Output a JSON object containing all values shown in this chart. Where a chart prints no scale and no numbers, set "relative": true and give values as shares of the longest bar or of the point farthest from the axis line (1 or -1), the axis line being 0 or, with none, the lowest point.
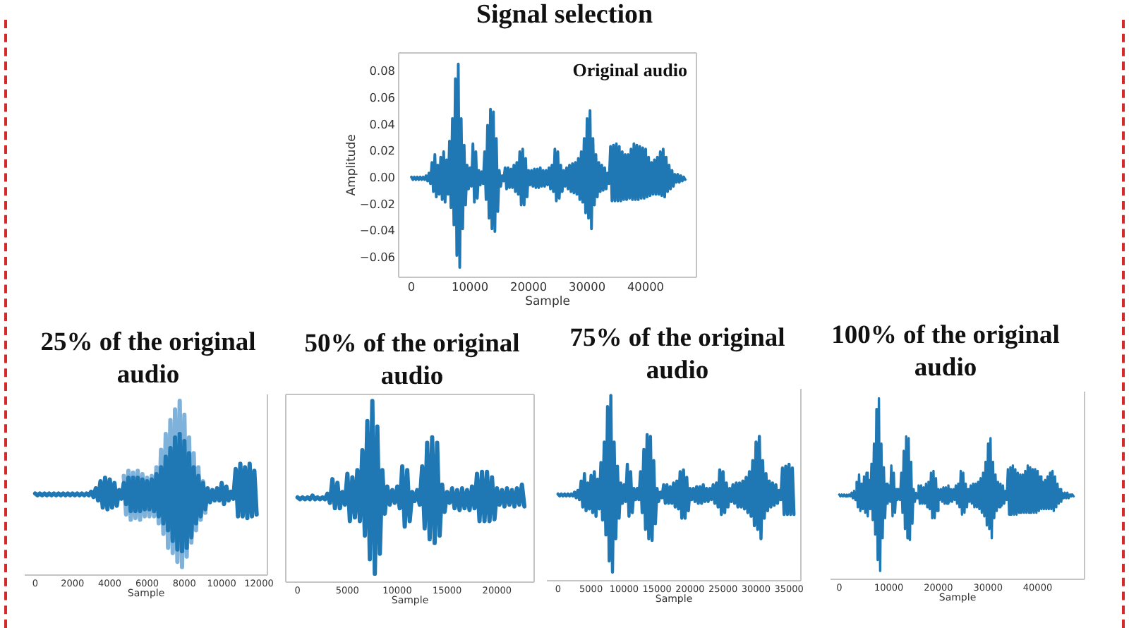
{
  "chart_data": [
    {
      "type": "line",
      "title": "Signal selection",
      "annotations": [
        "Original audio"
      ],
      "xlabel": "Sample",
      "ylabel": "Amplitude",
      "x": [
        0,
        250,
        500,
        750,
        1000,
        1250,
        1500,
        1750,
        2000,
        2250,
        2500,
        2750,
        3000,
        3250,
        3500,
        3750,
        4000,
        4250,
        4500,
        4750,
        5000,
        5250,
        5500,
        5750,
        6000,
        6250,
        6500,
        6750,
        7000,
        7250,
        7500,
        7750,
        8000,
        8250,
        8500,
        8750,
        9000,
        9250,
        9500,
        9750,
        10000,
        10250,
        10500,
        10750,
        11000,
        11250,
        11500,
        11750,
        12000,
        12250,
        12500,
        12750,
        13000,
        13250,
        13500,
        13750,
        14000,
        14250,
        14500,
        14750,
        15000,
        15250,
        15500,
        15750,
        16000,
        16250,
        16500,
        16750,
        17000,
        17250,
        17500,
        17750,
        18000,
        18250,
        18500,
        18750,
        19000,
        19250,
        19500,
        19750,
        20000,
        20250,
        20500,
        20750,
        21000,
        21250,
        21500,
        21750,
        22000,
        22250,
        22500,
        22750,
        23000,
        23250,
        23500,
        23750,
        24000,
        24250,
        24500,
        24750,
        25000,
        25250,
        25500,
        25750,
        26000,
        26250,
        26500,
        26750,
        27000,
        27250,
        27500,
        27750,
        28000,
        28250,
        28500,
        28750,
        29000,
        29250,
        29500,
        29750,
        30000,
        30250,
        30500,
        30750,
        31000,
        31250,
        31500,
        31750,
        32000,
        32250,
        32500,
        32750,
        33000,
        33250,
        33500,
        33750,
        34000,
        34250,
        34500,
        34750,
        35000,
        35250,
        35500,
        35750,
        36000,
        36250,
        36500,
        36750,
        37000,
        37250,
        37500,
        37750,
        38000,
        38250,
        38500,
        38750,
        39000,
        39250,
        39500,
        39750,
        40000,
        40250,
        40500,
        40750,
        41000,
        41250,
        41500,
        41750,
        42000,
        42250,
        42500,
        42750,
        43000,
        43250,
        43500,
        43750,
        44000,
        44250,
        44500,
        44750,
        45000,
        45250,
        45500,
        45750,
        46000,
        46250,
        46500,
        46750
      ],
      "series": [
        {
          "color": "#1f77b4",
          "values": [
            0.001,
            -0.001,
            0.001,
            -0.001,
            0.001,
            -0.001,
            0.001,
            -0.001,
            0.001,
            -0.001,
            0.002,
            -0.002,
            0.004,
            -0.004,
            0.012,
            -0.01,
            0.018,
            -0.014,
            0.01,
            -0.012,
            0.016,
            -0.016,
            0.02,
            -0.018,
            0.014,
            -0.012,
            0.028,
            -0.022,
            0.045,
            -0.035,
            0.075,
            -0.058,
            0.086,
            -0.067,
            0.045,
            -0.038,
            0.025,
            -0.02,
            0.01,
            -0.008,
            0.008,
            -0.006,
            0.026,
            -0.018,
            0.02,
            -0.015,
            0.006,
            -0.005,
            0.005,
            -0.004,
            0.02,
            -0.016,
            0.04,
            -0.03,
            0.052,
            -0.038,
            0.05,
            -0.04,
            0.03,
            -0.025,
            0.006,
            -0.006,
            0.002,
            -0.002,
            0.008,
            -0.008,
            0.008,
            -0.007,
            0.007,
            -0.007,
            0.01,
            -0.01,
            0.012,
            -0.012,
            0.02,
            -0.02,
            0.022,
            -0.02,
            0.015,
            -0.014,
            0.006,
            -0.005,
            0.006,
            -0.006,
            0.007,
            -0.007,
            0.007,
            -0.007,
            0.008,
            -0.006,
            0.006,
            -0.006,
            0.006,
            -0.005,
            0.008,
            -0.008,
            0.01,
            -0.01,
            0.022,
            -0.017,
            0.02,
            -0.015,
            0.01,
            -0.01,
            0.006,
            -0.006,
            0.008,
            -0.008,
            0.01,
            -0.01,
            0.011,
            -0.011,
            0.012,
            -0.012,
            0.015,
            -0.016,
            0.02,
            -0.018,
            0.03,
            -0.026,
            0.045,
            -0.03,
            0.051,
            -0.038,
            0.03,
            -0.02,
            0.018,
            -0.014,
            0.012,
            -0.01,
            0.01,
            -0.009,
            0.008,
            -0.008,
            0.004,
            -0.004,
            0.024,
            -0.017,
            0.025,
            -0.017,
            0.026,
            -0.017,
            0.024,
            -0.017,
            0.02,
            -0.016,
            0.018,
            -0.016,
            0.018,
            -0.015,
            0.022,
            -0.016,
            0.026,
            -0.016,
            0.025,
            -0.016,
            0.024,
            -0.015,
            0.023,
            -0.015,
            0.022,
            -0.014,
            0.016,
            -0.013,
            0.012,
            -0.012,
            0.014,
            -0.012,
            0.016,
            -0.012,
            0.02,
            -0.013,
            0.022,
            -0.014,
            0.016,
            -0.01,
            0.01,
            -0.008,
            0.006,
            -0.006,
            0.003,
            -0.003,
            0.003,
            -0.003,
            0.002,
            -0.002,
            0.001,
            -0.001
          ]
        }
      ],
      "xlim": [
        -2300,
        48800
      ],
      "xticks": [
        0,
        10000,
        20000,
        30000,
        40000
      ],
      "ylim": [
        -0.075,
        0.095
      ],
      "yticks": [
        {
          "value": -0.06,
          "label": "−0.06"
        },
        {
          "value": -0.04,
          "label": "−0.04"
        },
        {
          "value": -0.02,
          "label": "−0.02"
        },
        {
          "value": 0,
          "label": "0.00"
        },
        0.02,
        0.04,
        0.06,
        0.08
      ]
    },
    {
      "type": "line",
      "title": "25% of the original audio",
      "xlabel": "Sample",
      "relative": true,
      "series": [
        {
          "color": "#7fb2da",
          "x": [
            4750,
            4875,
            5000,
            5125,
            5250,
            5375,
            5500,
            5625,
            5750,
            5875,
            6000,
            6125,
            6250,
            6375,
            6500,
            6625,
            6750,
            6875,
            7000,
            7125,
            7250,
            7375,
            7500,
            7625,
            7750,
            7875,
            8000,
            8125,
            8250,
            8375,
            8500,
            8625,
            8750,
            8875,
            9000,
            9125
          ],
          "values": [
            0.57,
            0.35,
            0.6,
            0.32,
            0.59,
            0.33,
            0.6,
            0.32,
            0.58,
            0.34,
            0.56,
            0.34,
            0.57,
            0.34,
            0.62,
            0.3,
            0.72,
            0.24,
            0.81,
            0.16,
            0.89,
            0.13,
            0.95,
            0.08,
            1,
            0.05,
            0.92,
            0.11,
            0.79,
            0.19,
            0.7,
            0.26,
            0.62,
            0.32,
            0.54,
            0.36
          ]
        },
        {
          "color": "#1f77b4",
          "x": [
            0,
            125,
            250,
            375,
            500,
            625,
            750,
            875,
            1000,
            1125,
            1250,
            1375,
            1500,
            1625,
            1750,
            1875,
            2000,
            2125,
            2250,
            2375,
            2500,
            2625,
            2750,
            2875,
            3000,
            3125,
            3250,
            3375,
            3500,
            3625,
            3750,
            3875,
            4000,
            4125,
            4250,
            4375,
            4500,
            4625,
            4750,
            4875,
            5000,
            5125,
            5250,
            5375,
            5500,
            5625,
            5750,
            5875,
            6000,
            6125,
            6250,
            6375,
            6500,
            6625,
            6750,
            6875,
            7000,
            7125,
            7250,
            7375,
            7500,
            7625,
            7750,
            7875,
            8000,
            8125,
            8250,
            8375,
            8500,
            8625,
            8750,
            8875,
            9000,
            9125,
            9250,
            9375,
            9500,
            9625,
            9750,
            9875,
            10000,
            10125,
            10250,
            10375,
            10500,
            10625,
            10750,
            10875,
            11000,
            11125,
            11250,
            11375,
            11500,
            11625,
            11750,
            11875
          ],
          "values": [
            0.47,
            0.46,
            0.47,
            0.46,
            0.47,
            0.46,
            0.47,
            0.46,
            0.47,
            0.46,
            0.47,
            0.46,
            0.47,
            0.46,
            0.47,
            0.46,
            0.47,
            0.46,
            0.47,
            0.46,
            0.47,
            0.46,
            0.47,
            0.46,
            0.48,
            0.45,
            0.5,
            0.43,
            0.54,
            0.39,
            0.56,
            0.38,
            0.55,
            0.39,
            0.53,
            0.4,
            0.49,
            0.44,
            0.53,
            0.41,
            0.56,
            0.37,
            0.56,
            0.37,
            0.56,
            0.37,
            0.55,
            0.38,
            0.54,
            0.38,
            0.55,
            0.37,
            0.58,
            0.34,
            0.62,
            0.3,
            0.68,
            0.26,
            0.73,
            0.2,
            0.79,
            0.15,
            0.81,
            0.14,
            0.77,
            0.16,
            0.7,
            0.22,
            0.62,
            0.3,
            0.57,
            0.34,
            0.53,
            0.38,
            0.5,
            0.42,
            0.49,
            0.43,
            0.5,
            0.43,
            0.53,
            0.41,
            0.51,
            0.43,
            0.48,
            0.44,
            0.61,
            0.34,
            0.64,
            0.34,
            0.62,
            0.33,
            0.64,
            0.34,
            0.6,
            0.35
          ]
        }
      ],
      "xlim": [
        -600,
        12500
      ],
      "xticks": [
        0,
        2000,
        4000,
        6000,
        8000,
        10000,
        12000
      ]
    },
    {
      "type": "line",
      "title": "50% of the original audio",
      "xlabel": "Sample",
      "relative": true,
      "x": [
        0,
        250,
        500,
        750,
        1000,
        1250,
        1500,
        1750,
        2000,
        2250,
        2500,
        2750,
        3000,
        3250,
        3500,
        3750,
        4000,
        4250,
        4500,
        4750,
        5000,
        5250,
        5500,
        5750,
        6000,
        6250,
        6500,
        6750,
        7000,
        7250,
        7500,
        7750,
        8000,
        8250,
        8500,
        8750,
        9000,
        9250,
        9500,
        9750,
        10000,
        10250,
        10500,
        10750,
        11000,
        11250,
        11500,
        11750,
        12000,
        12250,
        12500,
        12750,
        13000,
        13250,
        13500,
        13750,
        14000,
        14250,
        14500,
        14750,
        15000,
        15250,
        15500,
        15750,
        16000,
        16250,
        16500,
        16750,
        17000,
        17250,
        17500,
        17750,
        18000,
        18250,
        18500,
        18750,
        19000,
        19250,
        19500,
        19750,
        20000,
        20250,
        20500,
        20750,
        21000,
        21250,
        21500,
        21750,
        22000,
        22250,
        22500,
        22750
      ],
      "series": [
        {
          "color": "#1f77b4",
          "values": [
            0.47,
            0.46,
            0.47,
            0.46,
            0.47,
            0.46,
            0.48,
            0.46,
            0.47,
            0.46,
            0.47,
            0.46,
            0.49,
            0.44,
            0.57,
            0.41,
            0.55,
            0.41,
            0.5,
            0.43,
            0.6,
            0.34,
            0.58,
            0.36,
            0.62,
            0.34,
            0.73,
            0.26,
            0.89,
            0.13,
            1,
            0.05,
            0.86,
            0.16,
            0.62,
            0.38,
            0.53,
            0.43,
            0.51,
            0.44,
            0.53,
            0.41,
            0.64,
            0.31,
            0.62,
            0.34,
            0.5,
            0.45,
            0.51,
            0.43,
            0.64,
            0.3,
            0.77,
            0.24,
            0.8,
            0.22,
            0.77,
            0.26,
            0.54,
            0.39,
            0.5,
            0.44,
            0.52,
            0.41,
            0.51,
            0.4,
            0.52,
            0.41,
            0.51,
            0.4,
            0.53,
            0.41,
            0.6,
            0.34,
            0.61,
            0.34,
            0.61,
            0.34,
            0.58,
            0.35,
            0.52,
            0.43,
            0.51,
            0.42,
            0.52,
            0.43,
            0.51,
            0.42,
            0.52,
            0.43,
            0.54,
            0.42
          ]
        }
      ],
      "xlim": [
        -1250,
        23800
      ],
      "xticks": [
        0,
        5000,
        10000,
        15000,
        20000
      ]
    },
    {
      "type": "line",
      "title": "75% of the original audio",
      "xlabel": "Sample",
      "relative": true,
      "x": [
        0,
        250,
        500,
        750,
        1000,
        1250,
        1500,
        1750,
        2000,
        2250,
        2500,
        2750,
        3000,
        3250,
        3500,
        3750,
        4000,
        4250,
        4500,
        4750,
        5000,
        5250,
        5500,
        5750,
        6000,
        6250,
        6500,
        6750,
        7000,
        7250,
        7500,
        7750,
        8000,
        8250,
        8500,
        8750,
        9000,
        9250,
        9500,
        9750,
        10000,
        10250,
        10500,
        10750,
        11000,
        11250,
        11500,
        11750,
        12000,
        12250,
        12500,
        12750,
        13000,
        13250,
        13500,
        13750,
        14000,
        14250,
        14500,
        14750,
        15000,
        15250,
        15500,
        15750,
        16000,
        16250,
        16500,
        16750,
        17000,
        17250,
        17500,
        17750,
        18000,
        18250,
        18500,
        18750,
        19000,
        19250,
        19500,
        19750,
        20000,
        20250,
        20500,
        20750,
        21000,
        21250,
        21500,
        21750,
        22000,
        22250,
        22500,
        22750,
        23000,
        23250,
        23500,
        23750,
        24000,
        24250,
        24500,
        24750,
        25000,
        25250,
        25500,
        25750,
        26000,
        26250,
        26500,
        26750,
        27000,
        27250,
        27500,
        27750,
        28000,
        28250,
        28500,
        28750,
        29000,
        29250,
        29500,
        29750,
        30000,
        30250,
        30500,
        30750,
        31000,
        31250,
        31500,
        31750,
        32000,
        32250,
        32500,
        32750,
        33000,
        33250,
        33500,
        33750,
        34000,
        34250,
        34500,
        34750,
        35000,
        35250,
        35500,
        35750
      ],
      "series": [
        {
          "color": "#1f77b4",
          "values": [
            0.47,
            0.46,
            0.47,
            0.46,
            0.47,
            0.46,
            0.47,
            0.46,
            0.47,
            0.46,
            0.48,
            0.45,
            0.49,
            0.44,
            0.54,
            0.4,
            0.58,
            0.38,
            0.53,
            0.39,
            0.57,
            0.37,
            0.59,
            0.35,
            0.55,
            0.39,
            0.64,
            0.33,
            0.75,
            0.25,
            0.94,
            0.11,
            1,
            0.05,
            0.75,
            0.23,
            0.62,
            0.34,
            0.53,
            0.42,
            0.52,
            0.43,
            0.63,
            0.35,
            0.59,
            0.37,
            0.5,
            0.44,
            0.5,
            0.44,
            0.59,
            0.37,
            0.71,
            0.28,
            0.79,
            0.23,
            0.78,
            0.22,
            0.65,
            0.31,
            0.5,
            0.43,
            0.48,
            0.45,
            0.52,
            0.42,
            0.52,
            0.42,
            0.51,
            0.42,
            0.53,
            0.4,
            0.54,
            0.39,
            0.59,
            0.34,
            0.6,
            0.34,
            0.56,
            0.38,
            0.5,
            0.44,
            0.5,
            0.43,
            0.51,
            0.42,
            0.51,
            0.42,
            0.52,
            0.43,
            0.5,
            0.43,
            0.5,
            0.44,
            0.52,
            0.42,
            0.53,
            0.4,
            0.6,
            0.36,
            0.59,
            0.37,
            0.53,
            0.4,
            0.5,
            0.43,
            0.52,
            0.42,
            0.53,
            0.4,
            0.53,
            0.4,
            0.54,
            0.39,
            0.56,
            0.37,
            0.59,
            0.35,
            0.65,
            0.3,
            0.75,
            0.28,
            0.78,
            0.23,
            0.65,
            0.34,
            0.58,
            0.38,
            0.54,
            0.4,
            0.53,
            0.41,
            0.52,
            0.42,
            0.49,
            0.44,
            0.61,
            0.36,
            0.62,
            0.36,
            0.63,
            0.36,
            0.61,
            0.36
          ]
        }
      ],
      "xlim": [
        -1800,
        36900
      ],
      "xticks": [
        0,
        5000,
        10000,
        15000,
        20000,
        25000,
        30000,
        35000
      ]
    },
    {
      "type": "line",
      "title": "100% of the original audio",
      "xlabel": "Sample",
      "relative": true,
      "x": [
        0,
        250,
        500,
        750,
        1000,
        1250,
        1500,
        1750,
        2000,
        2250,
        2500,
        2750,
        3000,
        3250,
        3500,
        3750,
        4000,
        4250,
        4500,
        4750,
        5000,
        5250,
        5500,
        5750,
        6000,
        6250,
        6500,
        6750,
        7000,
        7250,
        7500,
        7750,
        8000,
        8250,
        8500,
        8750,
        9000,
        9250,
        9500,
        9750,
        10000,
        10250,
        10500,
        10750,
        11000,
        11250,
        11500,
        11750,
        12000,
        12250,
        12500,
        12750,
        13000,
        13250,
        13500,
        13750,
        14000,
        14250,
        14500,
        14750,
        15000,
        15250,
        15500,
        15750,
        16000,
        16250,
        16500,
        16750,
        17000,
        17250,
        17500,
        17750,
        18000,
        18250,
        18500,
        18750,
        19000,
        19250,
        19500,
        19750,
        20000,
        20250,
        20500,
        20750,
        21000,
        21250,
        21500,
        21750,
        22000,
        22250,
        22500,
        22750,
        23000,
        23250,
        23500,
        23750,
        24000,
        24250,
        24500,
        24750,
        25000,
        25250,
        25500,
        25750,
        26000,
        26250,
        26500,
        26750,
        27000,
        27250,
        27500,
        27750,
        28000,
        28250,
        28500,
        28750,
        29000,
        29250,
        29500,
        29750,
        30000,
        30250,
        30500,
        30750,
        31000,
        31250,
        31500,
        31750,
        32000,
        32250,
        32500,
        32750,
        33000,
        33250,
        33500,
        33750,
        34000,
        34250,
        34500,
        34750,
        35000,
        35250,
        35500,
        35750,
        36000,
        36250,
        36500,
        36750,
        37000,
        37250,
        37500,
        37750,
        38000,
        38250,
        38500,
        38750,
        39000,
        39250,
        39500,
        39750,
        40000,
        40250,
        40500,
        40750,
        41000,
        41250,
        41500,
        41750,
        42000,
        42250,
        42500,
        42750,
        43000,
        43250,
        43500,
        43750,
        44000,
        44250,
        44500,
        44750,
        45000,
        45250,
        45500,
        45750,
        46000,
        46250,
        46500,
        46750,
        47000,
        47250
      ],
      "series": [
        {
          "color": "#1f77b4",
          "values": [
            0.47,
            0.46,
            0.47,
            0.46,
            0.47,
            0.46,
            0.47,
            0.46,
            0.47,
            0.46,
            0.48,
            0.45,
            0.49,
            0.44,
            0.54,
            0.4,
            0.58,
            0.38,
            0.53,
            0.39,
            0.57,
            0.37,
            0.59,
            0.35,
            0.55,
            0.39,
            0.64,
            0.33,
            0.75,
            0.25,
            0.94,
            0.11,
            1,
            0.05,
            0.75,
            0.23,
            0.62,
            0.34,
            0.53,
            0.42,
            0.52,
            0.43,
            0.63,
            0.35,
            0.59,
            0.37,
            0.5,
            0.44,
            0.5,
            0.44,
            0.59,
            0.37,
            0.71,
            0.28,
            0.79,
            0.23,
            0.78,
            0.22,
            0.65,
            0.31,
            0.5,
            0.43,
            0.48,
            0.45,
            0.52,
            0.42,
            0.52,
            0.42,
            0.51,
            0.42,
            0.53,
            0.4,
            0.54,
            0.39,
            0.59,
            0.34,
            0.6,
            0.34,
            0.56,
            0.38,
            0.5,
            0.44,
            0.5,
            0.43,
            0.51,
            0.42,
            0.51,
            0.42,
            0.52,
            0.43,
            0.5,
            0.43,
            0.5,
            0.44,
            0.52,
            0.42,
            0.53,
            0.4,
            0.6,
            0.36,
            0.59,
            0.37,
            0.53,
            0.4,
            0.5,
            0.43,
            0.52,
            0.42,
            0.53,
            0.4,
            0.53,
            0.4,
            0.54,
            0.39,
            0.56,
            0.37,
            0.59,
            0.35,
            0.65,
            0.3,
            0.75,
            0.28,
            0.78,
            0.23,
            0.65,
            0.34,
            0.58,
            0.38,
            0.54,
            0.4,
            0.53,
            0.41,
            0.52,
            0.42,
            0.49,
            0.44,
            0.61,
            0.36,
            0.62,
            0.36,
            0.63,
            0.36,
            0.61,
            0.36,
            0.59,
            0.37,
            0.58,
            0.37,
            0.58,
            0.37,
            0.6,
            0.37,
            0.63,
            0.37,
            0.62,
            0.37,
            0.61,
            0.37,
            0.61,
            0.37,
            0.6,
            0.38,
            0.57,
            0.39,
            0.54,
            0.39,
            0.55,
            0.39,
            0.57,
            0.39,
            0.59,
            0.39,
            0.6,
            0.38,
            0.57,
            0.4,
            0.53,
            0.42,
            0.5,
            0.43,
            0.48,
            0.45,
            0.48,
            0.45,
            0.48,
            0.45,
            0.47,
            0.46,
            0.47,
            0.46
          ]
        }
      ],
      "xlim": [
        -1900,
        49600
      ],
      "xticks": [
        0,
        10000,
        20000,
        30000,
        40000
      ]
    }
  ]
}
